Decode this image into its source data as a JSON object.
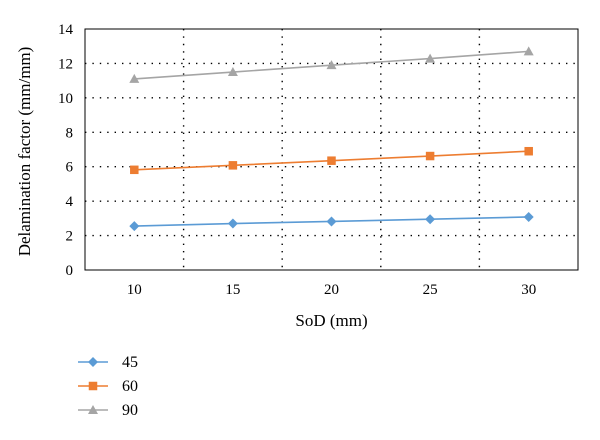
{
  "chart_data": {
    "type": "line",
    "xlabel": "SoD (mm)",
    "ylabel": "Delamination factor (mm/mm)",
    "x": [
      10,
      15,
      20,
      25,
      30
    ],
    "xlim": [
      7.5,
      32.5
    ],
    "ylim": [
      0,
      14
    ],
    "x_ticks": [
      10,
      15,
      20,
      25,
      30
    ],
    "y_ticks": [
      0,
      2,
      4,
      6,
      8,
      10,
      12,
      14
    ],
    "grid": "dotted",
    "legend_position": "bottom-left",
    "series": [
      {
        "name": "45",
        "color": "#5b9bd5",
        "marker": "diamond",
        "values": [
          2.55,
          2.7,
          2.82,
          2.95,
          3.08
        ]
      },
      {
        "name": "60",
        "color": "#ed7d31",
        "marker": "square",
        "values": [
          5.82,
          6.08,
          6.35,
          6.62,
          6.9
        ]
      },
      {
        "name": "90",
        "color": "#a5a5a5",
        "marker": "triangle",
        "values": [
          11.1,
          11.5,
          11.9,
          12.28,
          12.7
        ]
      }
    ]
  }
}
